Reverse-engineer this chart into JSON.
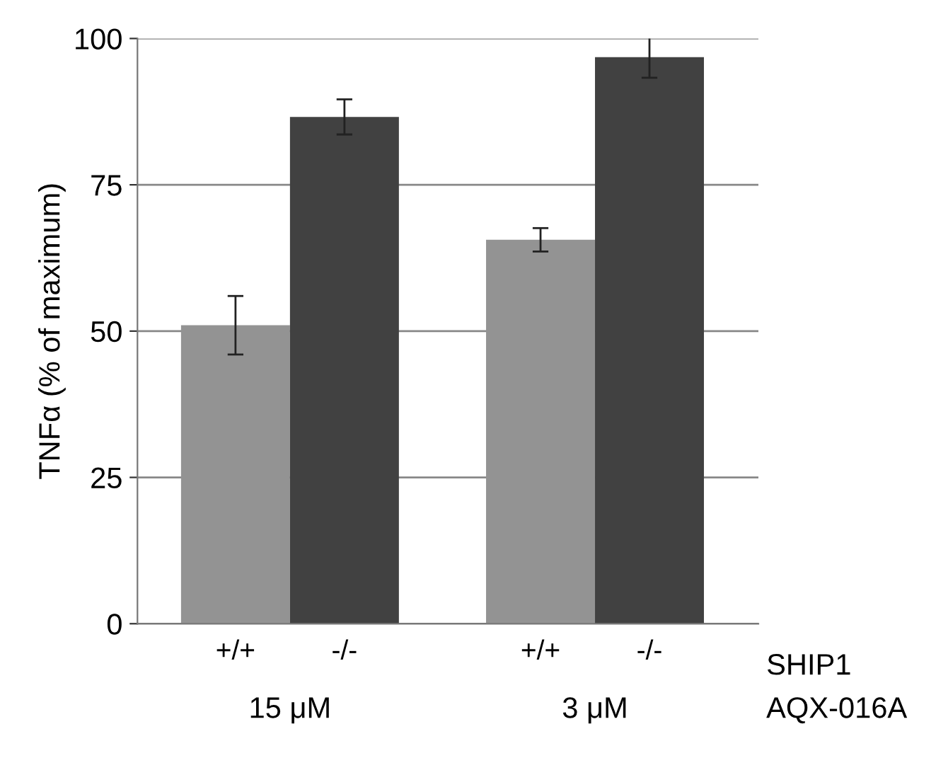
{
  "chart_data": {
    "type": "bar",
    "ylabel": "TNFα (% of maximum)",
    "categories": [
      "+/+",
      "-/-",
      "+/+",
      "-/-"
    ],
    "values": [
      51,
      86.6,
      65.6,
      96.8
    ],
    "colors": [
      "#939393",
      "#414141",
      "#939393",
      "#414141"
    ],
    "errors": [
      5,
      3,
      2,
      3.5
    ],
    "ylim": [
      0,
      100
    ],
    "yticks": [
      0,
      25,
      50,
      75,
      100
    ],
    "grid": "y",
    "annotations": [
      "15 μM",
      "3 μM",
      "SHIP1",
      "AQX-016A"
    ]
  }
}
